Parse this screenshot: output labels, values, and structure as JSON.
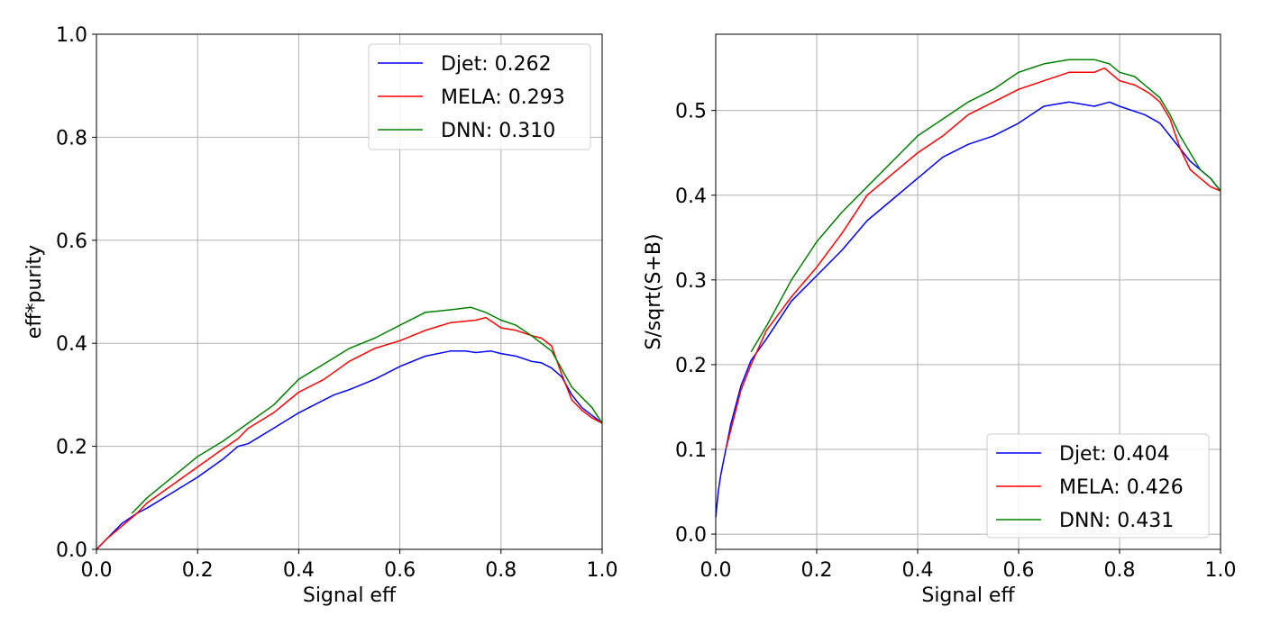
{
  "chart_data": [
    {
      "type": "line",
      "xlabel": "Signal eff",
      "ylabel": "eff*purity",
      "xlim": [
        0.0,
        1.0
      ],
      "ylim": [
        0.0,
        1.0
      ],
      "xticks": [
        "0.0",
        "0.2",
        "0.4",
        "0.6",
        "0.8",
        "1.0"
      ],
      "yticks": [
        "0.0",
        "0.2",
        "0.4",
        "0.6",
        "0.8",
        "1.0"
      ],
      "grid": true,
      "legend_position": "top-right",
      "series": [
        {
          "name": "Djet: 0.262",
          "color": "#0000ff",
          "x": [
            0.0,
            0.02,
            0.05,
            0.08,
            0.1,
            0.15,
            0.2,
            0.25,
            0.28,
            0.3,
            0.35,
            0.4,
            0.45,
            0.47,
            0.5,
            0.55,
            0.6,
            0.65,
            0.7,
            0.73,
            0.75,
            0.78,
            0.8,
            0.83,
            0.86,
            0.88,
            0.9,
            0.92,
            0.94,
            0.96,
            0.98,
            1.0
          ],
          "y": [
            0.0,
            0.02,
            0.05,
            0.07,
            0.08,
            0.11,
            0.14,
            0.175,
            0.2,
            0.205,
            0.235,
            0.265,
            0.29,
            0.3,
            0.31,
            0.33,
            0.355,
            0.375,
            0.385,
            0.385,
            0.382,
            0.385,
            0.38,
            0.375,
            0.365,
            0.362,
            0.352,
            0.335,
            0.3,
            0.275,
            0.26,
            0.245
          ]
        },
        {
          "name": "MELA: 0.293",
          "color": "#ff0000",
          "x": [
            0.0,
            0.02,
            0.05,
            0.08,
            0.1,
            0.15,
            0.2,
            0.25,
            0.28,
            0.3,
            0.35,
            0.4,
            0.45,
            0.5,
            0.55,
            0.6,
            0.65,
            0.7,
            0.75,
            0.77,
            0.8,
            0.83,
            0.86,
            0.88,
            0.9,
            0.92,
            0.94,
            0.96,
            0.98,
            1.0
          ],
          "y": [
            0.0,
            0.02,
            0.045,
            0.07,
            0.09,
            0.125,
            0.16,
            0.195,
            0.215,
            0.235,
            0.265,
            0.305,
            0.33,
            0.365,
            0.39,
            0.405,
            0.425,
            0.44,
            0.445,
            0.45,
            0.43,
            0.425,
            0.415,
            0.41,
            0.395,
            0.34,
            0.29,
            0.27,
            0.255,
            0.245
          ]
        },
        {
          "name": "DNN: 0.310",
          "color": "#008000",
          "x": [
            0.07,
            0.1,
            0.15,
            0.2,
            0.25,
            0.3,
            0.35,
            0.4,
            0.45,
            0.5,
            0.55,
            0.6,
            0.65,
            0.7,
            0.74,
            0.77,
            0.8,
            0.83,
            0.86,
            0.88,
            0.9,
            0.92,
            0.94,
            0.96,
            0.98,
            1.0
          ],
          "y": [
            0.07,
            0.1,
            0.14,
            0.18,
            0.21,
            0.245,
            0.28,
            0.33,
            0.36,
            0.39,
            0.41,
            0.435,
            0.46,
            0.465,
            0.47,
            0.46,
            0.445,
            0.435,
            0.415,
            0.4,
            0.385,
            0.35,
            0.315,
            0.295,
            0.275,
            0.245
          ]
        }
      ]
    },
    {
      "type": "line",
      "xlabel": "Signal eff",
      "ylabel": "S/sqrt(S+B)",
      "xlim": [
        0.0,
        1.0
      ],
      "ylim": [
        -0.018,
        0.59
      ],
      "xticks": [
        "0.0",
        "0.2",
        "0.4",
        "0.6",
        "0.8",
        "1.0"
      ],
      "yticks": [
        "0.0",
        "0.1",
        "0.2",
        "0.3",
        "0.4",
        "0.5"
      ],
      "grid": true,
      "legend_position": "bottom-right",
      "series": [
        {
          "name": "Djet: 0.404",
          "color": "#0000ff",
          "x": [
            0.0,
            0.005,
            0.01,
            0.02,
            0.03,
            0.05,
            0.07,
            0.1,
            0.15,
            0.2,
            0.25,
            0.3,
            0.35,
            0.4,
            0.45,
            0.5,
            0.55,
            0.6,
            0.65,
            0.7,
            0.75,
            0.78,
            0.8,
            0.85,
            0.88,
            0.9,
            0.92,
            0.94,
            0.96,
            0.98,
            1.0
          ],
          "y": [
            0.02,
            0.05,
            0.07,
            0.1,
            0.13,
            0.175,
            0.205,
            0.23,
            0.275,
            0.305,
            0.335,
            0.37,
            0.395,
            0.42,
            0.445,
            0.46,
            0.47,
            0.485,
            0.505,
            0.51,
            0.505,
            0.51,
            0.505,
            0.495,
            0.485,
            0.47,
            0.455,
            0.44,
            0.43,
            0.42,
            0.405
          ]
        },
        {
          "name": "MELA: 0.426",
          "color": "#ff0000",
          "x": [
            0.02,
            0.05,
            0.07,
            0.1,
            0.15,
            0.2,
            0.25,
            0.3,
            0.35,
            0.4,
            0.45,
            0.5,
            0.55,
            0.6,
            0.65,
            0.7,
            0.75,
            0.77,
            0.8,
            0.83,
            0.86,
            0.88,
            0.9,
            0.92,
            0.94,
            0.96,
            0.98,
            1.0
          ],
          "y": [
            0.1,
            0.17,
            0.2,
            0.24,
            0.28,
            0.315,
            0.355,
            0.4,
            0.425,
            0.45,
            0.47,
            0.495,
            0.51,
            0.525,
            0.535,
            0.545,
            0.545,
            0.55,
            0.535,
            0.53,
            0.52,
            0.51,
            0.49,
            0.455,
            0.43,
            0.42,
            0.41,
            0.405
          ]
        },
        {
          "name": "DNN: 0.431",
          "color": "#008000",
          "x": [
            0.07,
            0.1,
            0.15,
            0.2,
            0.25,
            0.3,
            0.35,
            0.4,
            0.45,
            0.5,
            0.55,
            0.6,
            0.65,
            0.7,
            0.75,
            0.78,
            0.8,
            0.83,
            0.86,
            0.88,
            0.9,
            0.92,
            0.94,
            0.96,
            0.98,
            1.0
          ],
          "y": [
            0.215,
            0.245,
            0.3,
            0.345,
            0.38,
            0.41,
            0.44,
            0.47,
            0.49,
            0.51,
            0.525,
            0.545,
            0.555,
            0.56,
            0.56,
            0.555,
            0.545,
            0.54,
            0.525,
            0.515,
            0.495,
            0.47,
            0.45,
            0.43,
            0.42,
            0.405
          ]
        }
      ]
    }
  ]
}
